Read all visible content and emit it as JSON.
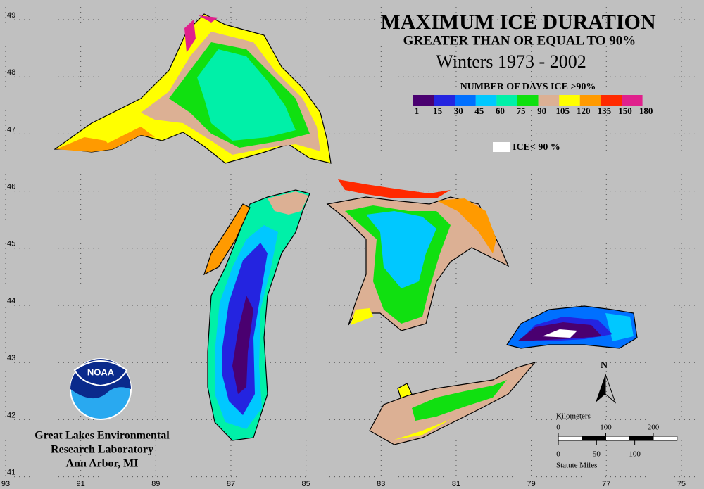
{
  "title": "MAXIMUM ICE DURATION",
  "subtitle": "GREATER THAN OR EQUAL TO 90%",
  "period": "Winters 1973  - 2002",
  "legend": {
    "title": "NUMBER OF DAYS ICE >90%",
    "breaks": [
      1,
      15,
      30,
      45,
      60,
      75,
      90,
      105,
      120,
      135,
      150,
      180
    ],
    "colors": [
      "#4a0070",
      "#2424e0",
      "#0070ff",
      "#00c8ff",
      "#00f0a8",
      "#10e010",
      "#dcb094",
      "#ffff00",
      "#ff9a00",
      "#ff2a00",
      "#e0208c"
    ],
    "no_ice_label": "ICE< 90 %",
    "no_ice_color": "#ffffff"
  },
  "map": {
    "lat_ticks": [
      49,
      48,
      47,
      46,
      45,
      44,
      43,
      42,
      41
    ],
    "lon_ticks": [
      93,
      91,
      89,
      87,
      85,
      83,
      81,
      79,
      77,
      75
    ]
  },
  "scale": {
    "km_title": "Kilometers",
    "km_ticks": [
      0,
      100,
      200
    ],
    "mi_title": "Statute Miles",
    "mi_ticks": [
      0,
      50,
      100
    ]
  },
  "north": "N",
  "logo": "NOAA",
  "credit": [
    "Great Lakes Environmental",
    "Research Laboratory",
    "Ann Arbor, MI"
  ]
}
